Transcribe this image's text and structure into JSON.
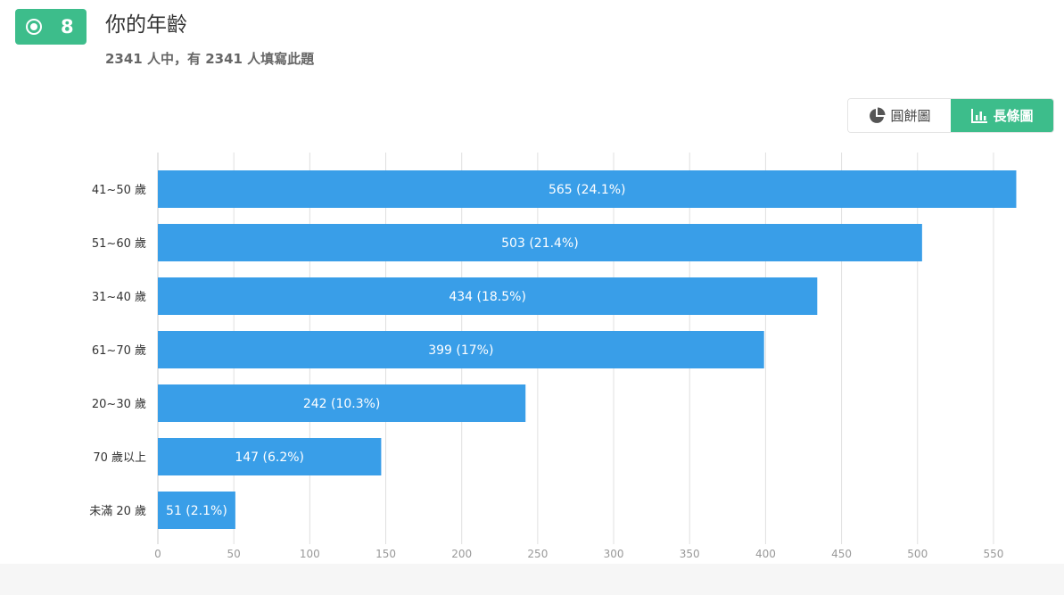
{
  "question": {
    "number": "8",
    "title": "你的年齡",
    "subtitle": "2341 人中，有 2341 人填寫此題",
    "type_icon": "radio-icon"
  },
  "toggle": {
    "pie_label": "圓餅圖",
    "pie_icon": "pie-chart-icon",
    "bar_label": "長條圖",
    "bar_icon": "bar-chart-icon",
    "active": "bar"
  },
  "colors": {
    "accent": "#3dbd8b",
    "bar": "#399ee8",
    "grid": "#e0e0e0"
  },
  "chart_data": {
    "type": "bar",
    "orientation": "horizontal",
    "categories": [
      "41~50 歲",
      "51~60 歲",
      "31~40 歲",
      "61~70 歲",
      "20~30 歲",
      "70 歲以上",
      "未滿 20 歲"
    ],
    "values": [
      565,
      503,
      434,
      399,
      242,
      147,
      51
    ],
    "data_labels": [
      "565 (24.1%)",
      "503 (21.4%)",
      "434 (18.5%)",
      "399 (17%)",
      "242 (10.3%)",
      "147 (6.2%)",
      "51 (2.1%)"
    ],
    "xlim": [
      0,
      580
    ],
    "xticks": [
      0,
      50,
      100,
      150,
      200,
      250,
      300,
      350,
      400,
      450,
      500,
      550
    ],
    "grid": true,
    "title": "",
    "xlabel": "",
    "ylabel": ""
  }
}
